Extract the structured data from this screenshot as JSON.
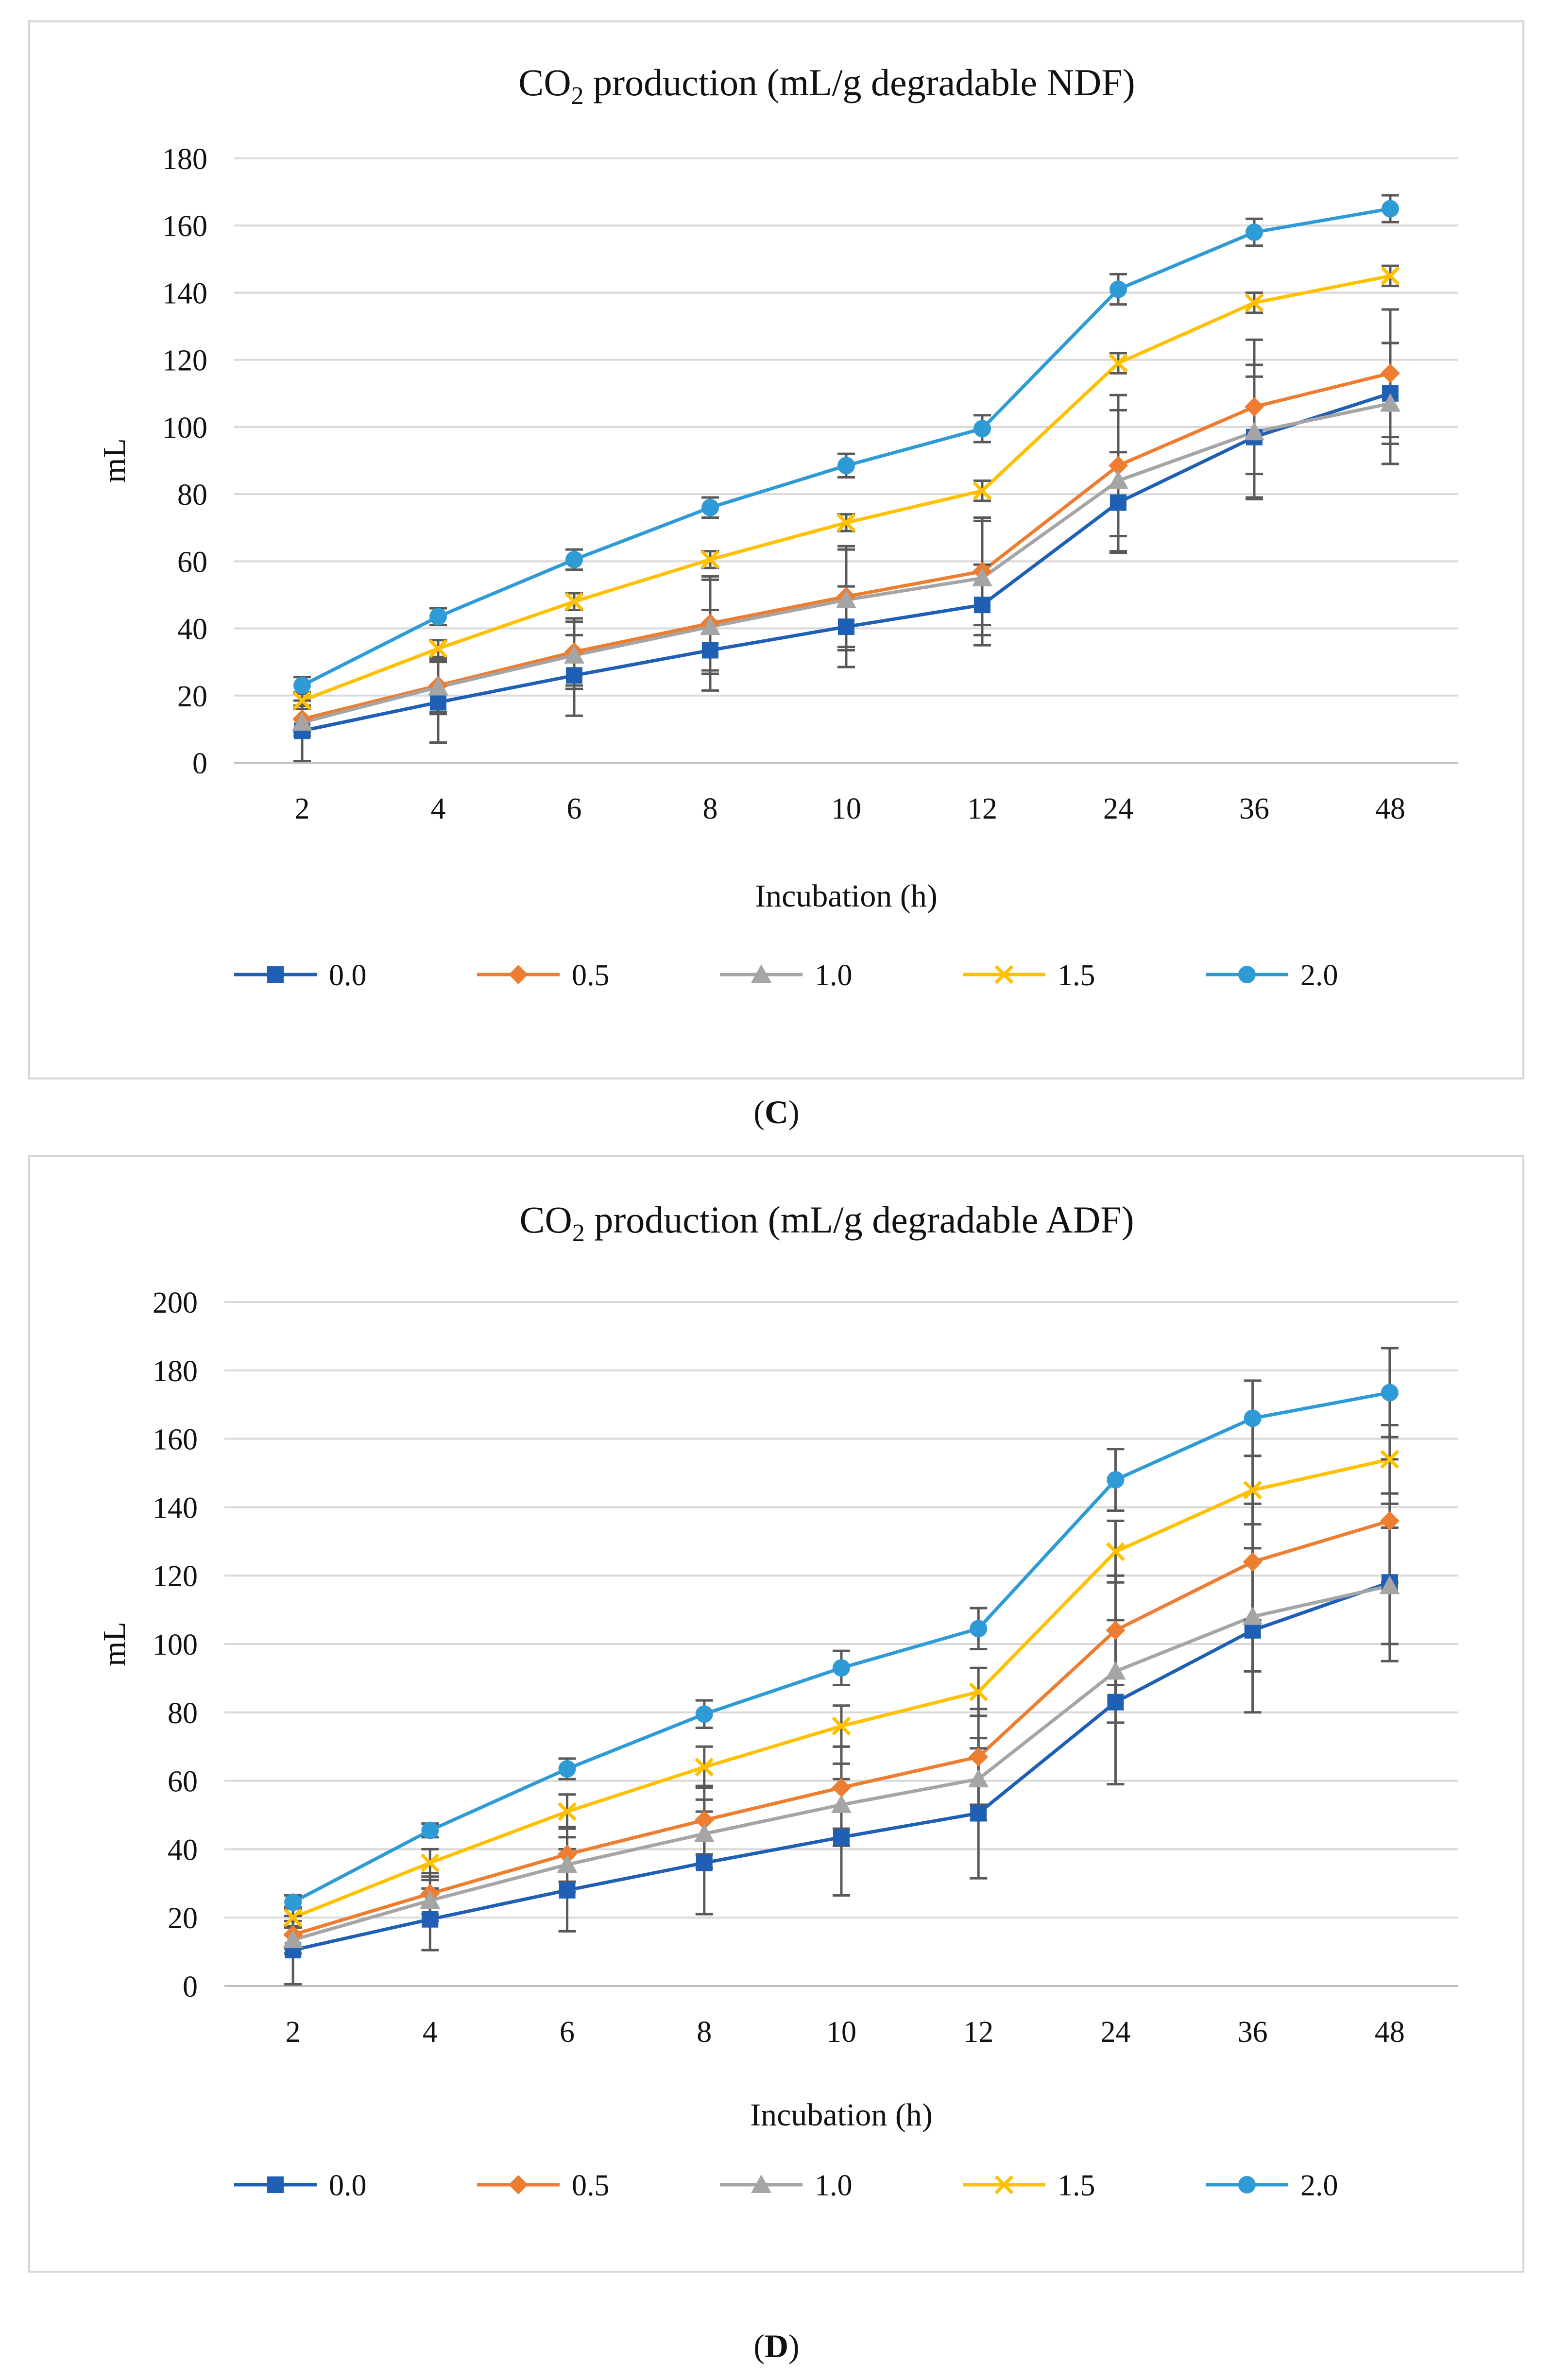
{
  "chart_data": [
    {
      "type": "line",
      "panel_label": "C",
      "title_prefix": "CO",
      "title_subscript": "2",
      "title_suffix": " production (mL/g degradable NDF)",
      "xlabel": "Incubation (h)",
      "ylabel": "mL",
      "categories": [
        "2",
        "4",
        "6",
        "8",
        "10",
        "12",
        "24",
        "36",
        "48"
      ],
      "ylim": [
        0,
        180
      ],
      "yticks": [
        0,
        20,
        40,
        60,
        80,
        100,
        120,
        140,
        160,
        180
      ],
      "grid": true,
      "legend": "bottom",
      "series": [
        {
          "name": "0.0",
          "color": "#1f5fb4",
          "marker": "square",
          "values": [
            9.5,
            18,
            26,
            33.5,
            40.5,
            47,
            77.5,
            97,
            110
          ],
          "errors": [
            9,
            12,
            12,
            12,
            12,
            12,
            15,
            18,
            15
          ]
        },
        {
          "name": "0.5",
          "color": "#ed7d31",
          "marker": "diamond",
          "values": [
            13,
            23,
            33,
            41.5,
            49.5,
            57,
            88.5,
            106,
            116
          ],
          "errors": [
            4,
            8,
            10,
            14,
            15,
            16,
            21,
            20,
            19
          ]
        },
        {
          "name": "1.0",
          "color": "#a5a5a5",
          "marker": "triangle",
          "values": [
            12,
            22.5,
            32,
            40.5,
            48.5,
            55,
            84,
            98.5,
            107
          ],
          "errors": [
            4,
            8,
            10,
            14,
            15,
            17,
            21,
            20,
            18
          ]
        },
        {
          "name": "1.5",
          "color": "#ffc000",
          "marker": "x",
          "values": [
            18.5,
            34,
            48,
            60.5,
            71.5,
            81,
            119,
            137,
            145
          ],
          "errors": [
            2.5,
            2.5,
            2.5,
            2.5,
            2.5,
            3,
            3,
            3,
            3
          ]
        },
        {
          "name": "2.0",
          "color": "#2e9bd6",
          "marker": "circle",
          "values": [
            23,
            43.5,
            60.5,
            76,
            88.5,
            99.5,
            141,
            158,
            165
          ],
          "errors": [
            2.5,
            2.5,
            3,
            3,
            3.5,
            4,
            4.5,
            4,
            4
          ]
        }
      ]
    },
    {
      "type": "line",
      "panel_label": "D",
      "title_prefix": "CO",
      "title_subscript": "2",
      "title_suffix": " production (mL/g degradable ADF)",
      "xlabel": "Incubation (h)",
      "ylabel": "mL",
      "categories": [
        "2",
        "4",
        "6",
        "8",
        "10",
        "12",
        "24",
        "36",
        "48"
      ],
      "ylim": [
        0,
        200
      ],
      "yticks": [
        0,
        20,
        40,
        60,
        80,
        100,
        120,
        140,
        160,
        180,
        200
      ],
      "grid": true,
      "legend": "bottom",
      "series": [
        {
          "name": "0.0",
          "color": "#1f5fb4",
          "marker": "square",
          "values": [
            10.5,
            19.5,
            28,
            36,
            43.5,
            50.5,
            83,
            104,
            118
          ],
          "errors": [
            10,
            9,
            12,
            15,
            17,
            19,
            24,
            24,
            23
          ]
        },
        {
          "name": "0.5",
          "color": "#ed7d31",
          "marker": "diamond",
          "values": [
            15,
            27,
            38.5,
            48.5,
            58,
            67,
            104,
            124,
            136
          ],
          "errors": [
            4,
            6,
            8,
            10,
            12,
            14,
            16,
            17,
            18
          ]
        },
        {
          "name": "1.0",
          "color": "#a5a5a5",
          "marker": "triangle",
          "values": [
            13.5,
            25,
            35.5,
            44.5,
            53,
            60.5,
            92,
            108,
            117
          ],
          "errors": [
            4,
            6,
            8,
            10,
            12,
            12,
            15,
            16,
            17
          ]
        },
        {
          "name": "1.5",
          "color": "#ffc000",
          "marker": "x",
          "values": [
            20,
            36,
            51,
            64,
            76,
            86,
            127,
            145,
            154
          ],
          "errors": [
            3,
            4,
            5,
            6,
            6,
            7,
            9,
            10,
            10
          ]
        },
        {
          "name": "2.0",
          "color": "#2e9bd6",
          "marker": "circle",
          "values": [
            24.5,
            45.5,
            63.5,
            79.5,
            93,
            104.5,
            148,
            166,
            173.5
          ],
          "errors": [
            2,
            2,
            3,
            4,
            5,
            6,
            9,
            11,
            13
          ]
        }
      ]
    }
  ]
}
